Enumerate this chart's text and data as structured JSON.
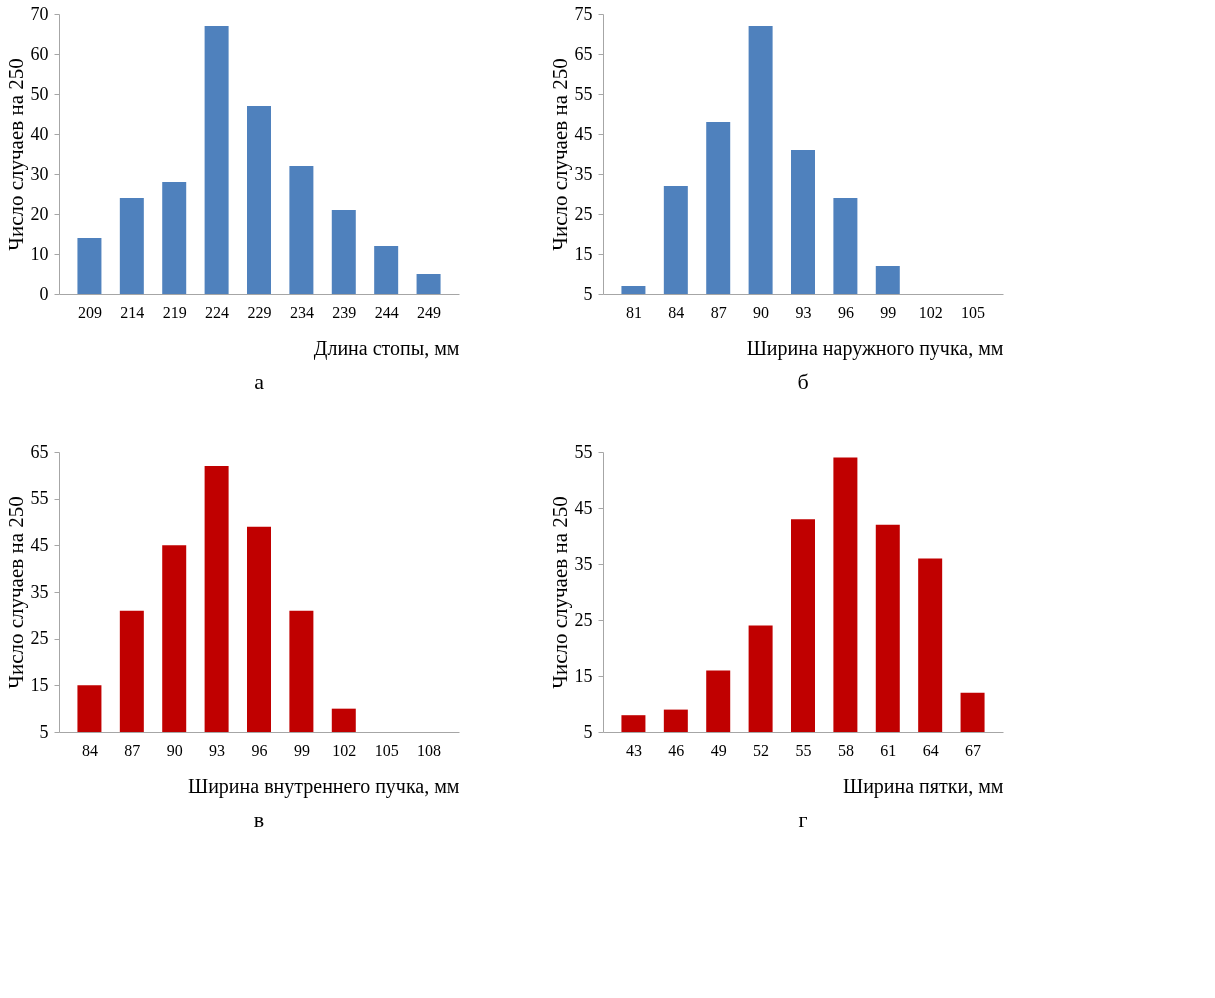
{
  "chart_data": [
    {
      "type": "bar",
      "title": "а",
      "xlabel": "Длина стопы, мм",
      "ylabel": "Число случаев на 250",
      "categories": [
        "209",
        "214",
        "219",
        "224",
        "229",
        "234",
        "239",
        "244",
        "249"
      ],
      "values": [
        14,
        24,
        28,
        67,
        47,
        32,
        21,
        12,
        5
      ],
      "color": "#4f81bd",
      "ylim": [
        0,
        70
      ],
      "yticks": [
        0,
        10,
        20,
        30,
        40,
        50,
        60,
        70
      ],
      "grid": false
    },
    {
      "type": "bar",
      "title": "б",
      "xlabel": "Ширина наружного пучка, мм",
      "ylabel": "Число случаев на 250",
      "categories": [
        "81",
        "84",
        "87",
        "90",
        "93",
        "96",
        "99",
        "102",
        "105"
      ],
      "values": [
        7,
        32,
        48,
        72,
        41,
        29,
        12,
        5,
        5
      ],
      "color": "#4f81bd",
      "ylim": [
        5,
        75
      ],
      "yticks": [
        5,
        15,
        25,
        35,
        45,
        55,
        65,
        75
      ],
      "grid": false
    },
    {
      "type": "bar",
      "title": "в",
      "xlabel": "Ширина внутреннего пучка, мм",
      "ylabel": "Число случаев на 250",
      "categories": [
        "84",
        "87",
        "90",
        "93",
        "96",
        "99",
        "102",
        "105",
        "108"
      ],
      "values": [
        15,
        31,
        45,
        62,
        49,
        31,
        10,
        5,
        5
      ],
      "color": "#c00000",
      "ylim": [
        5,
        65
      ],
      "yticks": [
        5,
        15,
        25,
        35,
        45,
        55,
        65
      ],
      "grid": false
    },
    {
      "type": "bar",
      "title": "г",
      "xlabel": "Ширина пятки, мм",
      "ylabel": "Число случаев на 250",
      "categories": [
        "43",
        "46",
        "49",
        "52",
        "55",
        "58",
        "61",
        "64",
        "67"
      ],
      "values": [
        8,
        9,
        16,
        24,
        43,
        54,
        42,
        36,
        12
      ],
      "color": "#c00000",
      "ylim": [
        5,
        55
      ],
      "yticks": [
        5,
        15,
        25,
        35,
        45,
        55
      ],
      "grid": false
    }
  ]
}
